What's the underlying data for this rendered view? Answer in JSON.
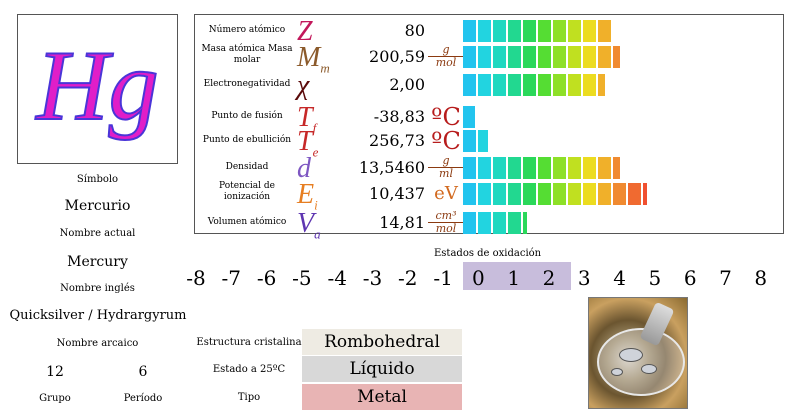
{
  "element": {
    "symbol": "Hg",
    "symbol_label": "Símbolo",
    "current_name": "Mercurio",
    "current_name_label": "Nombre actual",
    "english_name": "Mercury",
    "english_name_label": "Nombre inglés",
    "archaic_name": "Quicksilver / Hydrargyrum",
    "archaic_name_label": "Nombre arcaico",
    "group": "12",
    "group_label": "Grupo",
    "period": "6",
    "period_label": "Período"
  },
  "properties": [
    {
      "label": "Número atómico",
      "symbol": "Z",
      "sub": "",
      "value": "80",
      "unit": "",
      "unit_top": "",
      "unit_bottom": "",
      "color": "#c2185b",
      "bar_fill": 10
    },
    {
      "label": "Masa atómica Masa molar",
      "symbol": "M",
      "sub": "m",
      "value": "200,59",
      "unit": "",
      "unit_top": "g",
      "unit_bottom": "mol",
      "color": "#8b5a2b",
      "bar_fill": 10.5
    },
    {
      "label": "Electronegatividad",
      "symbol": "χ",
      "sub": "",
      "value": "2,00",
      "unit": "",
      "unit_top": "",
      "unit_bottom": "",
      "color": "#5a0a0a",
      "bar_fill": 9.5
    },
    {
      "label": "Punto de fusión",
      "symbol": "T",
      "sub": "f",
      "value": "-38,83",
      "unit": "ºC",
      "unit_top": "",
      "unit_bottom": "",
      "color": "#c62828",
      "bar_fill": 0.9
    },
    {
      "label": "Punto de ebullición",
      "symbol": "T",
      "sub": "e",
      "value": "256,73",
      "unit": "ºC",
      "unit_top": "",
      "unit_bottom": "",
      "color": "#c62828",
      "bar_fill": 1.8
    },
    {
      "label": "Densidad",
      "symbol": "d",
      "sub": "",
      "value": "13,5460",
      "unit": "",
      "unit_top": "g",
      "unit_bottom": "ml",
      "color": "#7e57c2",
      "bar_fill": 10.5
    },
    {
      "label": "Potencial de ionización",
      "symbol": "E",
      "sub": "i",
      "value": "10,437",
      "unit": "eV",
      "unit_top": "",
      "unit_bottom": "",
      "color": "#e67e22",
      "bar_fill": 12.3
    },
    {
      "label": "Volumen atómico",
      "symbol": "V",
      "sub": "a",
      "value": "14,81",
      "unit": "",
      "unit_top": "cm³",
      "unit_bottom": "mol",
      "color": "#5e35b1",
      "bar_fill": 4.3
    }
  ],
  "bar_colors": [
    "#22c4ee",
    "#22d4e0",
    "#1fd8c0",
    "#22d890",
    "#2ad85a",
    "#55dd33",
    "#8ee028",
    "#c0e020",
    "#ecdc20",
    "#f0b02a",
    "#f08a30",
    "#f06a30",
    "#f05030"
  ],
  "oxidation": {
    "title": "Estados de oxidación",
    "states": [
      "-8",
      "-7",
      "-6",
      "-5",
      "-4",
      "-3",
      "-2",
      "-1",
      "0",
      "1",
      "2",
      "3",
      "4",
      "5",
      "6",
      "7",
      "8"
    ],
    "highlighted": [
      "0",
      "1",
      "2"
    ]
  },
  "info": [
    {
      "label": "Estructura cristalina",
      "value": "Rombohedral",
      "bg": "#eeebe3"
    },
    {
      "label": "Estado a 25ºC",
      "value": "Líquido",
      "bg": "#d8d8d8"
    },
    {
      "label": "Tipo",
      "value": "Metal",
      "bg": "#e8b4b4"
    }
  ]
}
